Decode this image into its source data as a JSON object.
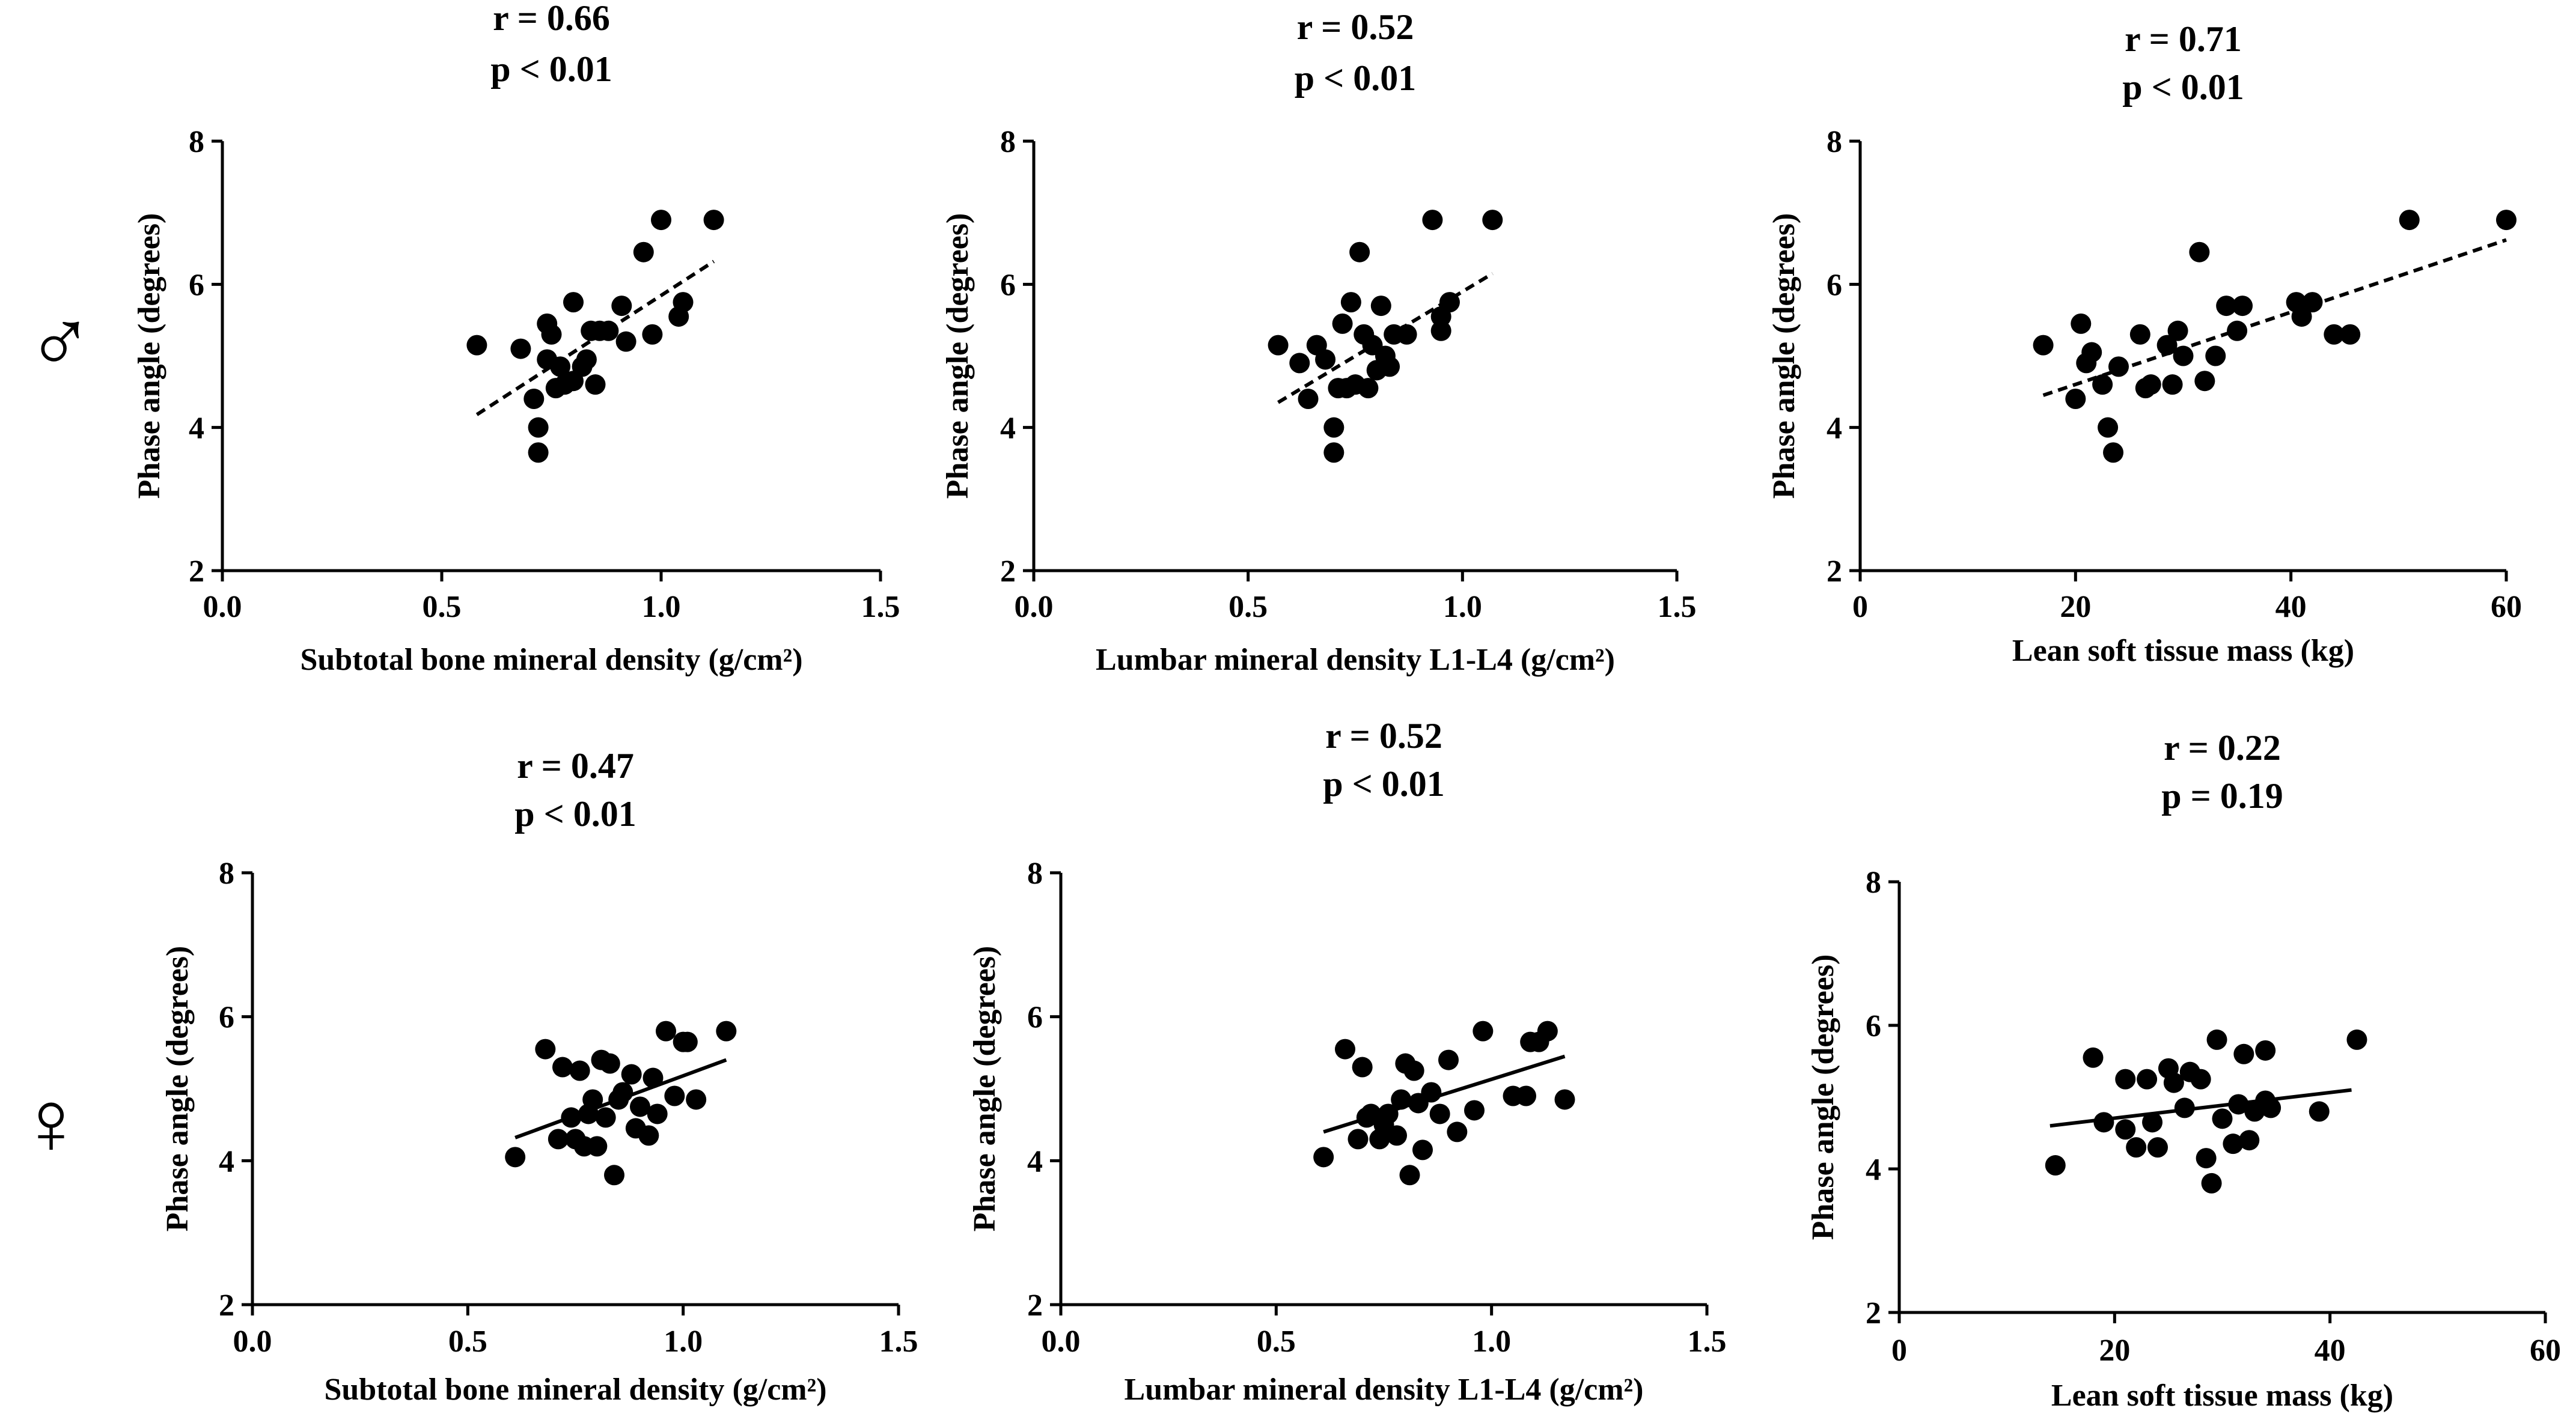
{
  "row_labels": [
    "♂",
    "♀"
  ],
  "chart_data": [
    {
      "type": "scatter",
      "row": "male",
      "stats": {
        "r": "r = 0.66",
        "p": "p < 0.01"
      },
      "xlabel": "Subtotal bone mineral density (g/cm²)",
      "ylabel": "Phase angle (degrees)",
      "xlim": [
        0,
        1.5
      ],
      "ylim": [
        2,
        8
      ],
      "xticks": [
        "0.0",
        "0.5",
        "1.0",
        "1.5"
      ],
      "yticks": [
        "2",
        "4",
        "6",
        "8"
      ],
      "trend": {
        "style": "dashed",
        "x": [
          0.58,
          1.12
        ],
        "y": [
          4.18,
          6.32
        ]
      },
      "x": [
        0.58,
        0.68,
        0.71,
        0.72,
        0.72,
        0.74,
        0.74,
        0.75,
        0.76,
        0.77,
        0.78,
        0.8,
        0.8,
        0.82,
        0.83,
        0.84,
        0.85,
        0.86,
        0.88,
        0.91,
        0.92,
        0.96,
        0.98,
        1.0,
        1.04,
        1.05,
        1.12
      ],
      "y": [
        5.15,
        5.1,
        4.4,
        4.0,
        3.65,
        4.95,
        5.45,
        5.3,
        4.55,
        4.85,
        4.6,
        5.75,
        4.65,
        4.85,
        4.95,
        5.35,
        4.6,
        5.35,
        5.35,
        5.7,
        5.2,
        6.45,
        5.3,
        6.9,
        5.55,
        5.75,
        6.9
      ]
    },
    {
      "type": "scatter",
      "row": "male",
      "stats": {
        "r": "r = 0.52",
        "p": "p < 0.01"
      },
      "xlabel": "Lumbar mineral density L1-L4 (g/cm²)",
      "ylabel": "Phase angle (degrees)",
      "xlim": [
        0,
        1.5
      ],
      "ylim": [
        2,
        8
      ],
      "xticks": [
        "0.0",
        "0.5",
        "1.0",
        "1.5"
      ],
      "yticks": [
        "2",
        "4",
        "6",
        "8"
      ],
      "trend": {
        "style": "dashed",
        "x": [
          0.57,
          1.07
        ],
        "y": [
          4.35,
          6.15
        ]
      },
      "x": [
        0.57,
        0.62,
        0.64,
        0.66,
        0.68,
        0.7,
        0.7,
        0.71,
        0.72,
        0.73,
        0.74,
        0.75,
        0.76,
        0.77,
        0.78,
        0.79,
        0.8,
        0.81,
        0.82,
        0.83,
        0.84,
        0.87,
        0.93,
        0.95,
        0.95,
        0.97,
        1.07
      ],
      "y": [
        5.15,
        4.9,
        4.4,
        5.15,
        4.95,
        3.65,
        4.0,
        4.55,
        5.45,
        4.55,
        5.75,
        4.6,
        6.45,
        5.3,
        4.55,
        5.15,
        4.8,
        5.7,
        5.0,
        4.85,
        5.3,
        5.3,
        6.9,
        5.35,
        5.55,
        5.75,
        6.9
      ]
    },
    {
      "type": "scatter",
      "row": "male",
      "stats": {
        "r": "r = 0.71",
        "p": "p < 0.01"
      },
      "xlabel": "Lean soft tissue mass (kg)",
      "ylabel": "Phase angle (degrees)",
      "xlim": [
        0,
        60
      ],
      "ylim": [
        2,
        8
      ],
      "xticks": [
        "0",
        "20",
        "40",
        "60"
      ],
      "yticks": [
        "2",
        "4",
        "6",
        "8"
      ],
      "trend": {
        "style": "dashed",
        "x": [
          17,
          60
        ],
        "y": [
          4.45,
          6.62
        ]
      },
      "x": [
        17,
        20,
        20.5,
        21,
        21.5,
        22.5,
        23,
        23.5,
        24,
        26,
        26.5,
        27,
        28.5,
        29,
        29.5,
        30,
        31.5,
        32,
        33,
        34,
        35,
        35.5,
        40.5,
        41,
        42,
        44,
        45.5,
        51,
        60
      ],
      "y": [
        5.15,
        4.4,
        5.45,
        4.9,
        5.05,
        4.6,
        4.0,
        3.65,
        4.85,
        5.3,
        4.55,
        4.6,
        5.15,
        4.6,
        5.35,
        5.0,
        6.45,
        4.65,
        5.0,
        5.7,
        5.35,
        5.7,
        5.75,
        5.55,
        5.75,
        5.3,
        5.3,
        6.9,
        6.9
      ]
    },
    {
      "type": "scatter",
      "row": "female",
      "stats": {
        "r": "r = 0.47",
        "p": "p < 0.01"
      },
      "xlabel": "Subtotal bone mineral density (g/cm²)",
      "ylabel": "Phase angle (degrees)",
      "xlim": [
        0,
        1.5
      ],
      "ylim": [
        2,
        8
      ],
      "xticks": [
        "0.0",
        "0.5",
        "1.0",
        "1.5"
      ],
      "yticks": [
        "2",
        "4",
        "6",
        "8"
      ],
      "trend": {
        "style": "solid",
        "x": [
          0.61,
          1.1
        ],
        "y": [
          4.32,
          5.4
        ]
      },
      "x": [
        0.61,
        0.68,
        0.71,
        0.72,
        0.74,
        0.75,
        0.76,
        0.77,
        0.78,
        0.79,
        0.8,
        0.81,
        0.82,
        0.83,
        0.84,
        0.85,
        0.86,
        0.88,
        0.89,
        0.9,
        0.92,
        0.93,
        0.94,
        0.96,
        0.98,
        1.0,
        1.01,
        1.03,
        1.1
      ],
      "y": [
        4.05,
        5.55,
        4.3,
        5.3,
        4.6,
        4.3,
        5.25,
        4.2,
        4.65,
        4.85,
        4.2,
        5.4,
        4.6,
        5.35,
        3.8,
        4.85,
        4.95,
        5.2,
        4.45,
        4.75,
        4.35,
        5.15,
        4.65,
        5.8,
        4.9,
        5.65,
        5.65,
        4.85,
        5.8
      ]
    },
    {
      "type": "scatter",
      "row": "female",
      "stats": {
        "r": "r = 0.52",
        "p": "p < 0.01"
      },
      "xlabel": "Lumbar mineral density L1-L4 (g/cm²)",
      "ylabel": "Phase angle (degrees)",
      "xlim": [
        0,
        1.5
      ],
      "ylim": [
        2,
        8
      ],
      "xticks": [
        "0.0",
        "0.5",
        "1.0",
        "1.5"
      ],
      "yticks": [
        "2",
        "4",
        "6",
        "8"
      ],
      "trend": {
        "style": "solid",
        "x": [
          0.61,
          1.17
        ],
        "y": [
          4.4,
          5.45
        ]
      },
      "x": [
        0.61,
        0.66,
        0.69,
        0.7,
        0.71,
        0.72,
        0.74,
        0.75,
        0.76,
        0.78,
        0.79,
        0.8,
        0.81,
        0.82,
        0.83,
        0.84,
        0.86,
        0.88,
        0.9,
        0.92,
        0.96,
        0.98,
        1.05,
        1.08,
        1.09,
        1.11,
        1.13,
        1.17
      ],
      "y": [
        4.05,
        5.55,
        4.3,
        5.3,
        4.6,
        4.65,
        4.3,
        4.5,
        4.65,
        4.35,
        4.85,
        5.35,
        3.8,
        5.25,
        4.8,
        4.15,
        4.95,
        4.65,
        5.4,
        4.4,
        4.7,
        5.8,
        4.9,
        4.9,
        5.65,
        5.65,
        5.8,
        4.85
      ]
    },
    {
      "type": "scatter",
      "row": "female",
      "stats": {
        "r": "r = 0.22",
        "p": "p = 0.19"
      },
      "xlabel": "Lean soft tissue mass (kg)",
      "ylabel": "Phase angle (degrees)",
      "xlim": [
        0,
        60
      ],
      "ylim": [
        2,
        8
      ],
      "xticks": [
        "0",
        "20",
        "40",
        "60"
      ],
      "yticks": [
        "2",
        "4",
        "6",
        "8"
      ],
      "trend": {
        "style": "solid",
        "x": [
          14,
          42
        ],
        "y": [
          4.6,
          5.1
        ]
      },
      "x": [
        14.5,
        18,
        19,
        21,
        21,
        22,
        23,
        23.5,
        24,
        25,
        25.5,
        26.5,
        27,
        28,
        28.5,
        29,
        29.5,
        30,
        31,
        31.5,
        32,
        32.5,
        33,
        34,
        34,
        34.5,
        39,
        42.5
      ],
      "y": [
        4.05,
        5.55,
        4.65,
        5.25,
        4.55,
        4.3,
        5.25,
        4.65,
        4.3,
        5.4,
        5.2,
        4.85,
        5.35,
        5.25,
        4.15,
        3.8,
        5.8,
        4.7,
        4.35,
        4.9,
        5.6,
        4.4,
        4.8,
        5.65,
        4.95,
        4.85,
        4.8,
        5.8
      ]
    }
  ]
}
